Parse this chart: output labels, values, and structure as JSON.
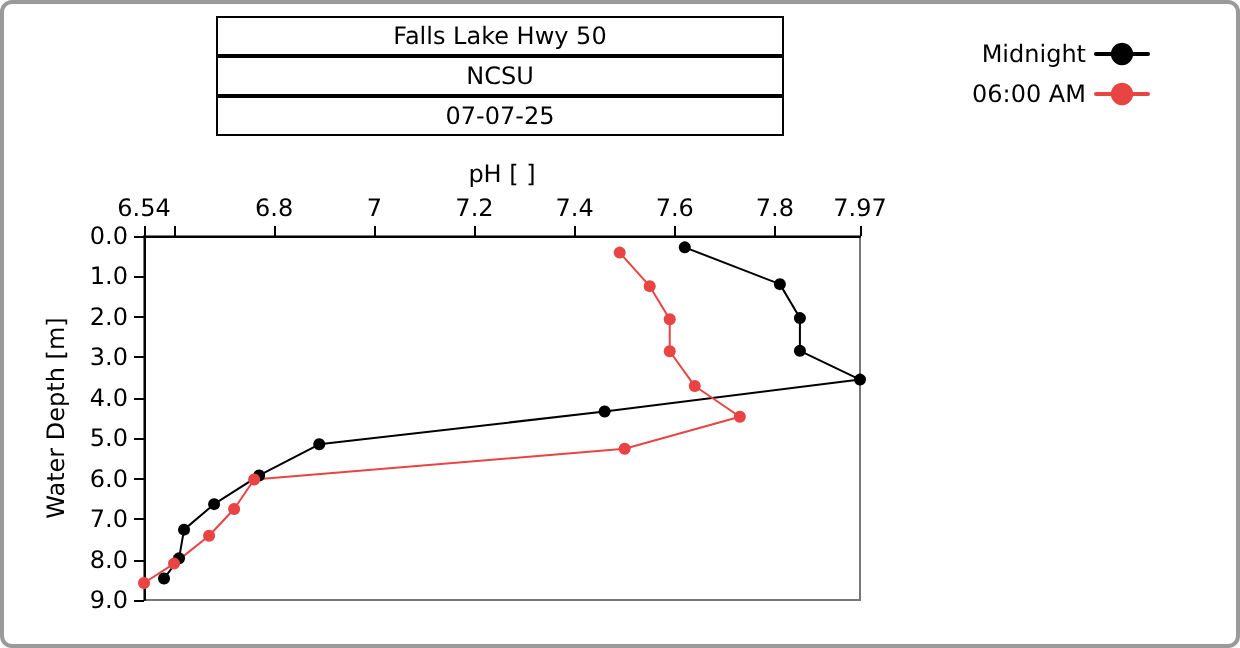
{
  "chart_data": {
    "type": "line",
    "title": "Falls Lake Hwy 50",
    "subtitle": "NCSU",
    "annotations": [
      "07-07-25"
    ],
    "xlabel": "pH [ ]",
    "ylabel": "Water Depth [m]",
    "xlim": [
      6.54,
      7.97
    ],
    "xticks": [
      6.54,
      {
        "value": 6.6,
        "label": null
      },
      6.8,
      7,
      7.2,
      7.4,
      7.6,
      7.8,
      7.97
    ],
    "ylim": [
      9.0,
      0.0
    ],
    "yticks": [
      {
        "value": 0,
        "label": "0.0"
      },
      {
        "value": 1,
        "label": "1.0"
      },
      {
        "value": 2,
        "label": "2.0"
      },
      {
        "value": 3,
        "label": "3.0"
      },
      {
        "value": 4,
        "label": "4.0"
      },
      {
        "value": 5,
        "label": "5.0"
      },
      {
        "value": 6,
        "label": "6.0"
      },
      {
        "value": 7,
        "label": "7.0"
      },
      {
        "value": 8,
        "label": "8.0"
      },
      {
        "value": 9,
        "label": "9.0"
      }
    ],
    "series": [
      {
        "name": "Midnight",
        "color": "#000000",
        "x": [
          7.62,
          7.81,
          7.85,
          7.85,
          7.97,
          7.46,
          6.89,
          6.77,
          6.68,
          6.62,
          6.61,
          6.58
        ],
        "values": [
          0.28,
          1.19,
          2.03,
          2.84,
          3.55,
          4.34,
          5.15,
          5.92,
          6.63,
          7.26,
          7.97,
          8.47
        ]
      },
      {
        "name": "06:00 AM",
        "color": "#e84444",
        "x": [
          7.49,
          7.55,
          7.59,
          7.59,
          7.64,
          7.73,
          7.5,
          6.76,
          6.72,
          6.67,
          6.6,
          6.54
        ],
        "values": [
          0.41,
          1.24,
          2.06,
          2.85,
          3.71,
          4.47,
          5.26,
          6.02,
          6.75,
          7.41,
          8.1,
          8.58
        ]
      }
    ],
    "grid": false,
    "legend": "top right",
    "marker": "circle",
    "line_style": "solid"
  }
}
